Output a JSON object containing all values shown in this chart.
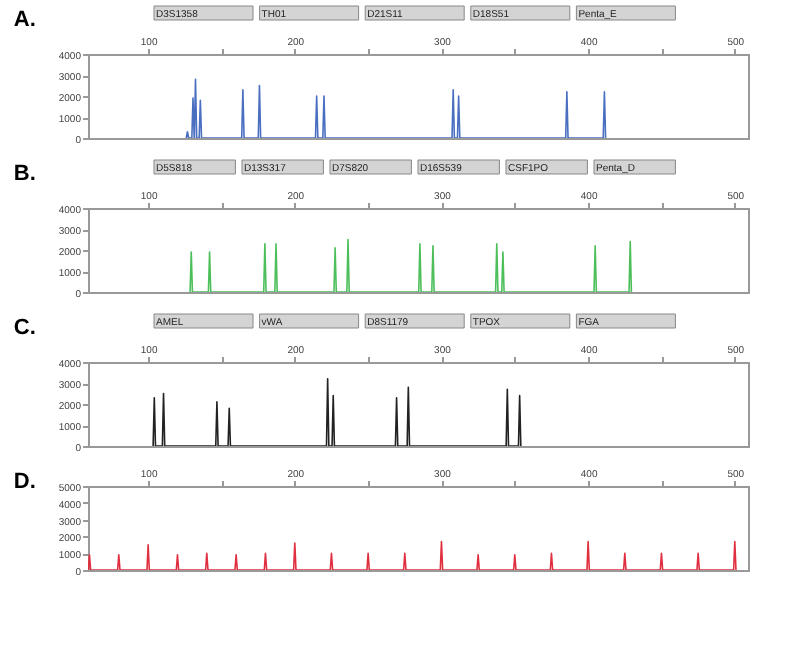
{
  "chart_data": [
    {
      "type": "line",
      "title": "A.",
      "xlim": [
        59,
        509
      ],
      "ylim": [
        0,
        4000
      ],
      "xticks": [
        100,
        {
          "value": 150,
          "label": null
        },
        200,
        {
          "value": 250,
          "label": null
        },
        300,
        {
          "value": 350,
          "label": null
        },
        400,
        {
          "value": 450,
          "label": null
        },
        500
      ],
      "yticks": [
        0,
        1000,
        2000,
        3000,
        4000
      ],
      "grid": false,
      "marker": "none",
      "annotations": [
        "D3S1358",
        "TH01",
        "D21S11",
        "D18S51",
        "Penta_E"
      ],
      "series": [
        {
          "color": "#4a6fc0",
          "x": [
            126,
            126.8,
            127.6,
            129.8,
            130.6,
            131.4,
            131.5,
            132.3,
            133.1,
            134.8,
            135.6,
            136.4,
            163.8,
            164.6,
            165.4,
            175.1,
            175.9,
            176.7,
            214.1,
            214.9,
            215.7,
            219.1,
            219.9,
            220.7,
            307.2,
            308,
            308.8,
            310.9,
            311.7,
            312.5,
            384.7,
            385.5,
            386.3,
            410.3,
            411.1,
            411.9
          ],
          "values": [
            0,
            300,
            0,
            0,
            1900,
            0,
            0,
            2800,
            0,
            0,
            1800,
            0,
            0,
            2300,
            0,
            0,
            2500,
            0,
            0,
            2000,
            0,
            0,
            2000,
            0,
            0,
            2300,
            0,
            0,
            2000,
            0,
            0,
            2200,
            0,
            0,
            2200,
            0
          ]
        }
      ]
    },
    {
      "type": "line",
      "title": "B.",
      "xlim": [
        59,
        509
      ],
      "ylim": [
        0,
        4000
      ],
      "xticks": [
        100,
        {
          "value": 150,
          "label": null
        },
        200,
        {
          "value": 250,
          "label": null
        },
        300,
        {
          "value": 350,
          "label": null
        },
        400,
        {
          "value": 450,
          "label": null
        },
        500
      ],
      "yticks": [
        0,
        1000,
        2000,
        3000,
        4000
      ],
      "grid": false,
      "marker": "none",
      "annotations": [
        "D5S818",
        "D13S317",
        "D7S820",
        "D16S539",
        "CSF1PO",
        "Penta_D"
      ],
      "series": [
        {
          "color": "#4cbf5a",
          "x": [
            128.6,
            129.4,
            130.2,
            141.1,
            141.9,
            142.7,
            178.8,
            179.6,
            180.4,
            186.4,
            187.2,
            188,
            226.7,
            227.5,
            228.3,
            235.5,
            236.3,
            237.1,
            284.5,
            285.3,
            286.1,
            293.4,
            294.2,
            295,
            336.9,
            337.7,
            338.5,
            341.1,
            341.9,
            342.7,
            404,
            404.8,
            405.6,
            427.9,
            428.7,
            429.5
          ],
          "values": [
            0,
            1900,
            0,
            0,
            1900,
            0,
            0,
            2300,
            0,
            0,
            2300,
            0,
            0,
            2100,
            0,
            0,
            2500,
            0,
            0,
            2300,
            0,
            0,
            2200,
            0,
            0,
            2300,
            0,
            0,
            1900,
            0,
            0,
            2200,
            0,
            0,
            2400,
            0
          ]
        }
      ]
    },
    {
      "type": "line",
      "title": "C.",
      "xlim": [
        59,
        509
      ],
      "ylim": [
        0,
        4000
      ],
      "xticks": [
        100,
        {
          "value": 150,
          "label": null
        },
        200,
        {
          "value": 250,
          "label": null
        },
        300,
        {
          "value": 350,
          "label": null
        },
        400,
        {
          "value": 450,
          "label": null
        },
        500
      ],
      "yticks": [
        0,
        1000,
        2000,
        3000,
        4000
      ],
      "grid": false,
      "marker": "none",
      "annotations": [
        "AMEL",
        "vWA",
        "D8S1179",
        "TPOX",
        "FGA"
      ],
      "series": [
        {
          "color": "#222222",
          "x": [
            103.4,
            104.2,
            105,
            109.7,
            110.5,
            111.3,
            146.1,
            146.9,
            147.7,
            154.5,
            155.3,
            156.1,
            221.6,
            222.4,
            223.2,
            225.4,
            226.2,
            227,
            268.6,
            269.4,
            270.2,
            276.6,
            277.4,
            278.2,
            344.1,
            344.9,
            345.7,
            352.5,
            353.3,
            354.1
          ],
          "values": [
            0,
            2300,
            0,
            0,
            2500,
            0,
            0,
            2100,
            0,
            0,
            1800,
            0,
            0,
            3200,
            0,
            0,
            2400,
            0,
            0,
            2300,
            0,
            0,
            2800,
            0,
            0,
            2700,
            0,
            0,
            2400,
            0
          ]
        }
      ]
    },
    {
      "type": "line",
      "title": "D.",
      "xlim": [
        59,
        509
      ],
      "ylim": [
        0,
        5000
      ],
      "xticks": [
        100,
        {
          "value": 150,
          "label": null
        },
        200,
        {
          "value": 250,
          "label": null
        },
        300,
        {
          "value": 350,
          "label": null
        },
        400,
        {
          "value": 450,
          "label": null
        },
        500
      ],
      "yticks": [
        0,
        1000,
        2000,
        3000,
        4000,
        5000
      ],
      "grid": false,
      "marker": "none",
      "series": [
        {
          "color": "#e03040",
          "x": [
            59.2,
            60,
            60.8,
            79.2,
            80,
            80.8,
            99.2,
            100,
            100.8,
            119.2,
            120,
            120.8,
            139.2,
            140,
            140.8,
            159.2,
            160,
            160.8,
            179.2,
            180,
            180.8,
            199.2,
            200,
            200.8,
            224.2,
            225,
            225.8,
            249.2,
            250,
            250.8,
            274.2,
            275,
            275.8,
            299.2,
            300,
            300.8,
            324.2,
            325,
            325.8,
            349.2,
            350,
            350.8,
            374.2,
            375,
            375.8,
            399.2,
            400,
            400.8,
            424.2,
            425,
            425.8,
            449.2,
            450,
            450.8,
            474.2,
            475,
            475.8,
            499.2,
            500,
            500.8
          ],
          "values": [
            0,
            900,
            0,
            0,
            900,
            0,
            0,
            1500,
            0,
            0,
            900,
            0,
            0,
            1000,
            0,
            0,
            900,
            0,
            0,
            1000,
            0,
            0,
            1600,
            0,
            0,
            1000,
            0,
            0,
            1000,
            0,
            0,
            1000,
            0,
            0,
            1700,
            0,
            0,
            900,
            0,
            0,
            900,
            0,
            0,
            1000,
            0,
            0,
            1700,
            0,
            0,
            1000,
            0,
            0,
            1000,
            0,
            0,
            1000,
            0,
            0,
            1700,
            0
          ]
        }
      ]
    }
  ]
}
